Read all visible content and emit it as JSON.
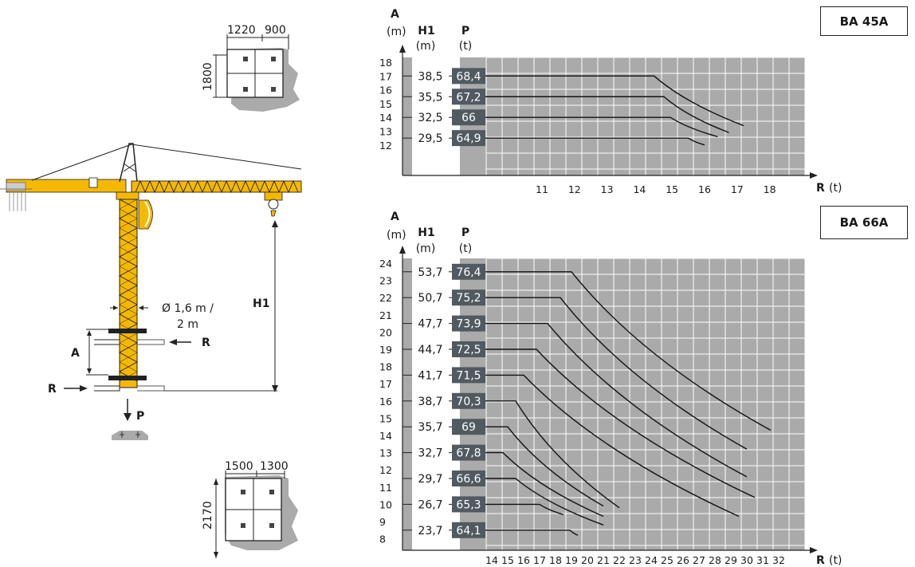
{
  "crane": {
    "dim_1220": "1220",
    "dim_900": "900",
    "dim_1800": "1800",
    "dim_1500": "1500",
    "dim_1300": "1300",
    "dim_2170": "2170",
    "mast_size_line1": "Ø 1,6 m /",
    "mast_size_line2": "2 m",
    "label_H1": "H1",
    "label_A": "A",
    "label_R": "R",
    "label_P": "P",
    "colors": {
      "crane_yellow": "#f5b800",
      "mast_dark": "#222222",
      "ground_gray": "#aaaaaa"
    }
  },
  "chart_data": [
    {
      "type": "line",
      "model": "BA 45A",
      "y_axis_label": "A",
      "y_axis_unit": "(m)",
      "col1_label": "H1",
      "col1_unit": "(m)",
      "col2_label": "P",
      "col2_unit": "(t)",
      "x_axis_label": "R",
      "x_axis_unit": "(t)",
      "y_ticks": [
        "18",
        "17",
        "16",
        "15",
        "14",
        "13",
        "12"
      ],
      "x_ticks": [
        "11",
        "12",
        "13",
        "14",
        "15",
        "16",
        "17",
        "18"
      ],
      "rows": [
        {
          "A": 17,
          "H1": "38,5",
          "P": "68,4",
          "flat_until": 14.45,
          "end": [
            17.2,
            13.4
          ]
        },
        {
          "A": 15.5,
          "H1": "35,5",
          "P": "67,2",
          "flat_until": 14.75,
          "end": [
            16.75,
            12.9
          ]
        },
        {
          "A": 14,
          "H1": "32,5",
          "P": "66",
          "flat_until": 14.95,
          "end": [
            16.4,
            12.6
          ]
        },
        {
          "A": 12.5,
          "H1": "29,5",
          "P": "64,9",
          "flat_until": 15.5,
          "end": [
            16.0,
            12.0
          ]
        }
      ],
      "colors": {
        "grid_bg": "#aaaaaa",
        "grid_line": "#ffffff",
        "p_box": "#505a60"
      }
    },
    {
      "type": "line",
      "model": "BA 66A",
      "y_axis_label": "A",
      "y_axis_unit": "(m)",
      "col1_label": "H1",
      "col1_unit": "(m)",
      "col2_label": "P",
      "col2_unit": "(t)",
      "x_axis_label": "R",
      "x_axis_unit": "(t)",
      "y_ticks": [
        "24",
        "23",
        "22",
        "21",
        "20",
        "19",
        "18",
        "17",
        "16",
        "15",
        "14",
        "13",
        "12",
        "11",
        "10",
        "9",
        "8"
      ],
      "x_ticks": [
        "14",
        "15",
        "16",
        "17",
        "18",
        "19",
        "20",
        "21",
        "22",
        "23",
        "24",
        "25",
        "26",
        "27",
        "28",
        "29",
        "30",
        "31",
        "32"
      ],
      "rows": [
        {
          "A": 23.5,
          "H1": "53,7",
          "P": "76,4",
          "flat_until": 19.0,
          "end": [
            31.5,
            14.3
          ]
        },
        {
          "A": 22,
          "H1": "50,7",
          "P": "75,2",
          "flat_until": 18.3,
          "end": [
            30.0,
            13.2
          ]
        },
        {
          "A": 20.5,
          "H1": "47,7",
          "P": "73,9",
          "flat_until": 17.5,
          "end": [
            30.0,
            11.6
          ]
        },
        {
          "A": 19,
          "H1": "44,7",
          "P": "72,5",
          "flat_until": 16.8,
          "end": [
            30.5,
            10.4
          ]
        },
        {
          "A": 17.5,
          "H1": "41,7",
          "P": "71,5",
          "flat_until": 16.0,
          "end": [
            29.5,
            9.3
          ]
        },
        {
          "A": 16,
          "H1": "38,7",
          "P": "70,3",
          "flat_until": 15.5,
          "end": [
            22.0,
            9.8
          ]
        },
        {
          "A": 14.5,
          "H1": "35,7",
          "P": "69",
          "flat_until": 15.0,
          "end": [
            21.0,
            9.9
          ]
        },
        {
          "A": 13,
          "H1": "32,7",
          "P": "67,8",
          "flat_until": 14.7,
          "end": [
            21.0,
            9.3
          ]
        },
        {
          "A": 11.5,
          "H1": "29,7",
          "P": "66,6",
          "flat_until": 15.5,
          "end": [
            21.0,
            8.8
          ]
        },
        {
          "A": 10,
          "H1": "26,7",
          "P": "65,3",
          "flat_until": 17.0,
          "end": [
            18.5,
            9.4
          ]
        },
        {
          "A": 8.5,
          "H1": "23,7",
          "P": "64,1",
          "flat_until": 18.9,
          "end": [
            19.4,
            8.2
          ]
        }
      ],
      "colors": {
        "grid_bg": "#aaaaaa",
        "grid_line": "#ffffff",
        "p_box": "#505a60"
      }
    }
  ]
}
